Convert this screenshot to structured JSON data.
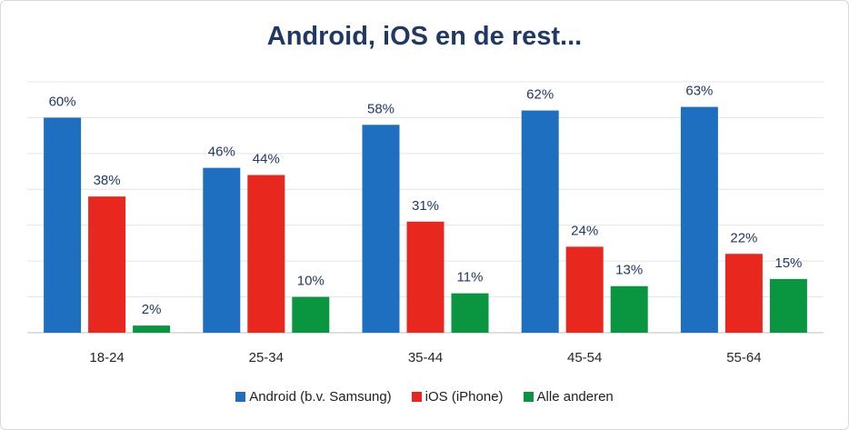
{
  "chart_data": {
    "type": "bar",
    "title": "Android, iOS en de rest...",
    "categories": [
      "18-24",
      "25-34",
      "35-44",
      "45-54",
      "55-64"
    ],
    "series": [
      {
        "name": "Android (b.v. Samsung)",
        "color": "#1f6fc0",
        "values": [
          60,
          46,
          58,
          62,
          63
        ]
      },
      {
        "name": "iOS (iPhone)",
        "color": "#e8281e",
        "values": [
          38,
          44,
          31,
          24,
          22
        ]
      },
      {
        "name": "Alle anderen",
        "color": "#0a9640",
        "values": [
          2,
          10,
          11,
          13,
          15
        ]
      }
    ],
    "value_suffix": "%",
    "ylim": [
      0,
      70
    ],
    "grid": true,
    "legend": "bottom"
  }
}
